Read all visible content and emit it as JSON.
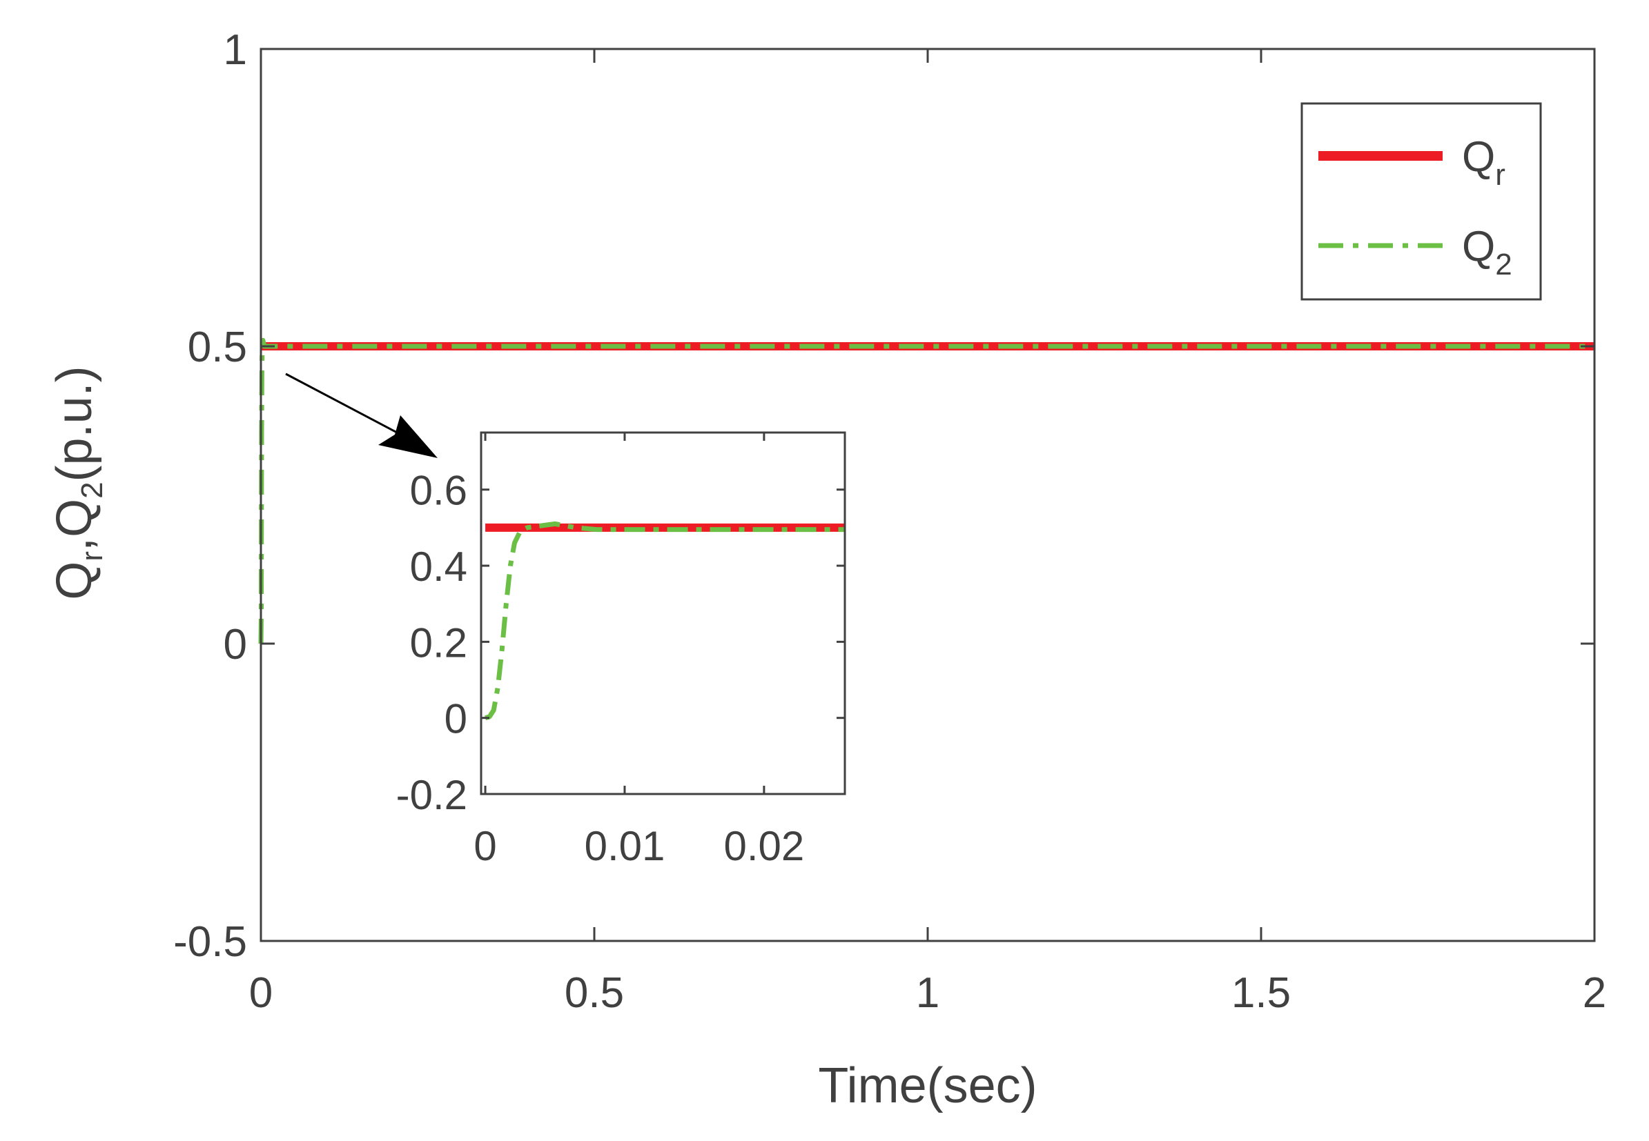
{
  "chart_data": [
    {
      "type": "line",
      "xlabel": "Time(sec)",
      "ylabel": {
        "base1": "Q",
        "sub1": "r",
        "sep": ",",
        "base2": "Q",
        "sub2": "2",
        "unit": "(p.u.)"
      },
      "xlim": [
        0,
        2
      ],
      "ylim": [
        -0.5,
        1
      ],
      "xticks": [
        0,
        0.5,
        1,
        1.5,
        2
      ],
      "xtick_labels": [
        "0",
        "0.5",
        "1",
        "1.5",
        "2"
      ],
      "yticks": [
        -0.5,
        0,
        0.5,
        1
      ],
      "ytick_labels": [
        "-0.5",
        "0",
        "0.5",
        "1"
      ],
      "grid": false,
      "legend_position": "top-right",
      "series": [
        {
          "name": "Q_r",
          "legend_base": "Q",
          "legend_sub": "r",
          "color": "#ED1C24",
          "style": "solid",
          "x": [
            0,
            2
          ],
          "y": [
            0.5,
            0.5
          ]
        },
        {
          "name": "Q_2",
          "legend_base": "Q",
          "legend_sub": "2",
          "color": "#6BBF45",
          "style": "dashdot",
          "x": [
            0,
            0.0005,
            0.001,
            0.0015,
            0.002,
            0.003,
            0.005,
            0.01,
            2
          ],
          "y": [
            0,
            0.05,
            0.35,
            0.47,
            0.495,
            0.51,
            0.5,
            0.5,
            0.5
          ]
        }
      ]
    },
    {
      "type": "line",
      "role": "inset",
      "xlim": [
        -0.0003,
        0.0258
      ],
      "ylim": [
        -0.2,
        0.75
      ],
      "xticks": [
        0,
        0.01,
        0.02
      ],
      "xtick_labels": [
        "0",
        "0.01",
        "0.02"
      ],
      "yticks": [
        -0.2,
        0,
        0.2,
        0.4,
        0.6
      ],
      "ytick_labels": [
        "-0.2",
        "0",
        "0.2",
        "0.4",
        "0.6"
      ],
      "grid": false,
      "series": [
        {
          "name": "Q_r",
          "color": "#ED1C24",
          "style": "solid",
          "x": [
            0,
            0.0258
          ],
          "y": [
            0.5,
            0.5
          ]
        },
        {
          "name": "Q_2",
          "color": "#6BBF45",
          "style": "dashdot",
          "x": [
            0,
            0.0003,
            0.0006,
            0.0009,
            0.0012,
            0.0015,
            0.0018,
            0.0021,
            0.0025,
            0.003,
            0.004,
            0.005,
            0.0065,
            0.008,
            0.0258
          ],
          "y": [
            0,
            0.003,
            0.02,
            0.08,
            0.18,
            0.3,
            0.4,
            0.46,
            0.49,
            0.5,
            0.505,
            0.51,
            0.5,
            0.495,
            0.495
          ]
        }
      ]
    }
  ]
}
